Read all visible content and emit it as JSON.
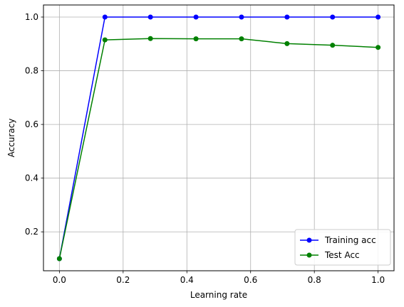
{
  "chart_data": {
    "type": "line",
    "title": "",
    "xlabel": "Learning rate",
    "ylabel": "Accuracy",
    "x": [
      0.0,
      0.1429,
      0.2857,
      0.4286,
      0.5714,
      0.7143,
      0.8571,
      1.0
    ],
    "series": [
      {
        "name": "Training acc",
        "color": "#0000ff",
        "marker": "circle",
        "values": [
          0.1,
          1.0,
          1.0,
          1.0,
          1.0,
          1.0,
          1.0,
          1.0
        ]
      },
      {
        "name": "Test Acc",
        "color": "#008000",
        "marker": "circle",
        "values": [
          0.1,
          0.915,
          0.92,
          0.919,
          0.919,
          0.901,
          0.895,
          0.887
        ]
      }
    ],
    "xlim": [
      -0.05,
      1.05
    ],
    "ylim": [
      0.055,
      1.045
    ],
    "xticks": [
      0.0,
      0.2,
      0.4,
      0.6,
      0.8,
      1.0
    ],
    "xtick_labels": [
      "0.0",
      "0.2",
      "0.4",
      "0.6",
      "0.8",
      "1.0"
    ],
    "yticks": [
      0.2,
      0.4,
      0.6,
      0.8,
      1.0
    ],
    "ytick_labels": [
      "0.2",
      "0.4",
      "0.6",
      "0.8",
      "1.0"
    ],
    "grid": true,
    "legend_position": "lower-right"
  }
}
